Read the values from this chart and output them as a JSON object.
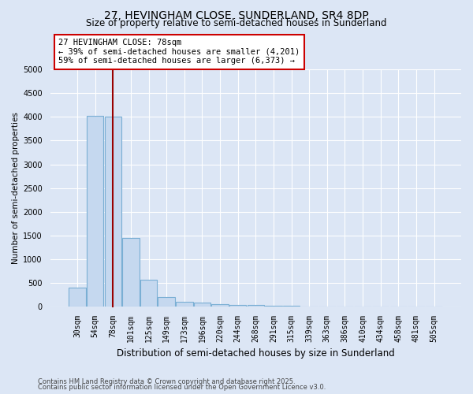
{
  "title": "27, HEVINGHAM CLOSE, SUNDERLAND, SR4 8DP",
  "subtitle": "Size of property relative to semi-detached houses in Sunderland",
  "xlabel": "Distribution of semi-detached houses by size in Sunderland",
  "ylabel": "Number of semi-detached properties",
  "categories": [
    "30sqm",
    "54sqm",
    "78sqm",
    "101sqm",
    "125sqm",
    "149sqm",
    "173sqm",
    "196sqm",
    "220sqm",
    "244sqm",
    "268sqm",
    "291sqm",
    "315sqm",
    "339sqm",
    "363sqm",
    "386sqm",
    "410sqm",
    "434sqm",
    "458sqm",
    "481sqm",
    "505sqm"
  ],
  "values": [
    400,
    4020,
    4010,
    1450,
    560,
    200,
    100,
    70,
    50,
    30,
    25,
    8,
    5,
    3,
    2,
    1,
    1,
    0,
    0,
    0,
    0
  ],
  "bar_color": "#c5d8ef",
  "bar_edge_color": "#7aafd4",
  "highlight_index": 2,
  "highlight_color": "#990000",
  "ylim": [
    0,
    5000
  ],
  "yticks": [
    0,
    500,
    1000,
    1500,
    2000,
    2500,
    3000,
    3500,
    4000,
    4500,
    5000
  ],
  "annotation_title": "27 HEVINGHAM CLOSE: 78sqm",
  "annotation_line1": "← 39% of semi-detached houses are smaller (4,201)",
  "annotation_line2": "59% of semi-detached houses are larger (6,373) →",
  "annotation_box_color": "#ffffff",
  "annotation_box_edge": "#cc0000",
  "footer1": "Contains HM Land Registry data © Crown copyright and database right 2025.",
  "footer2": "Contains public sector information licensed under the Open Government Licence v3.0.",
  "bg_color": "#dce6f5",
  "plot_bg_color": "#dce6f5",
  "title_fontsize": 10,
  "subtitle_fontsize": 8.5,
  "tick_fontsize": 7,
  "ylabel_fontsize": 7.5,
  "xlabel_fontsize": 8.5,
  "grid_color": "#ffffff",
  "annotation_fontsize": 7.5
}
